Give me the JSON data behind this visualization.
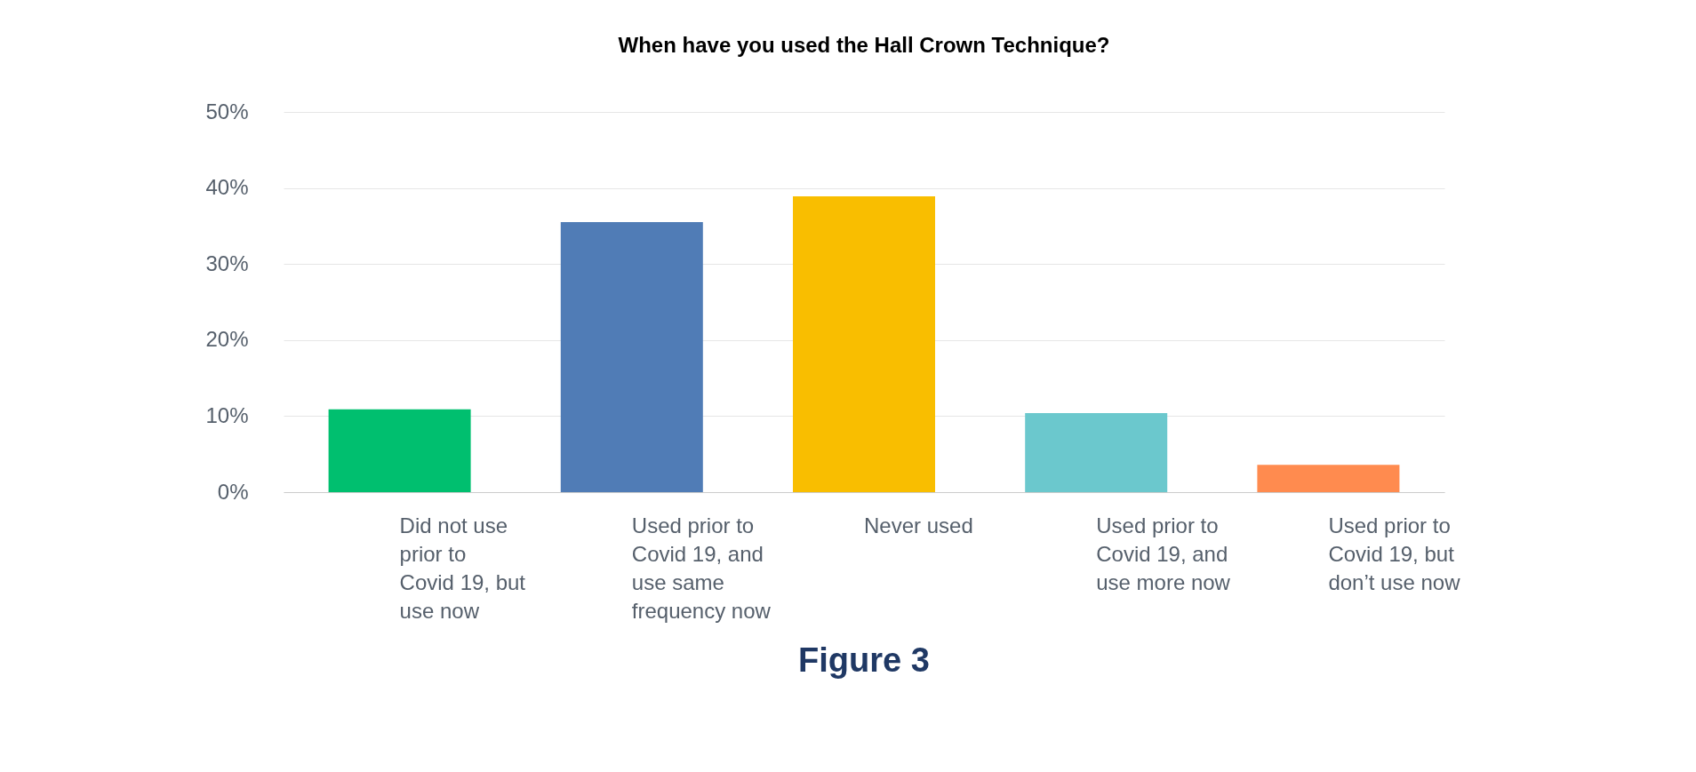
{
  "chart_data": {
    "type": "bar",
    "title": "When have you used the Hall Crown Technique?",
    "categories": [
      "Did not use prior to Covid 19, but use now",
      "Used prior to Covid 19, and use same frequency now",
      "Never used",
      "Used prior to Covid 19, and use more now",
      "Used prior to Covid 19, but don’t use now"
    ],
    "values": [
      10.9,
      35.5,
      38.9,
      10.4,
      3.6
    ],
    "colors": [
      "#00bf6f",
      "#507cb6",
      "#f9be00",
      "#6bc8cd",
      "#ff8b4f"
    ],
    "ylim": [
      0,
      50
    ],
    "yticks": [
      {
        "value": 0,
        "label": "0%"
      },
      {
        "value": 10,
        "label": "10%"
      },
      {
        "value": 20,
        "label": "20%"
      },
      {
        "value": 30,
        "label": "30%"
      },
      {
        "value": 40,
        "label": "40%"
      },
      {
        "value": 50,
        "label": "50%"
      }
    ],
    "grid": "y",
    "annotations": [
      "Figure 3"
    ]
  }
}
